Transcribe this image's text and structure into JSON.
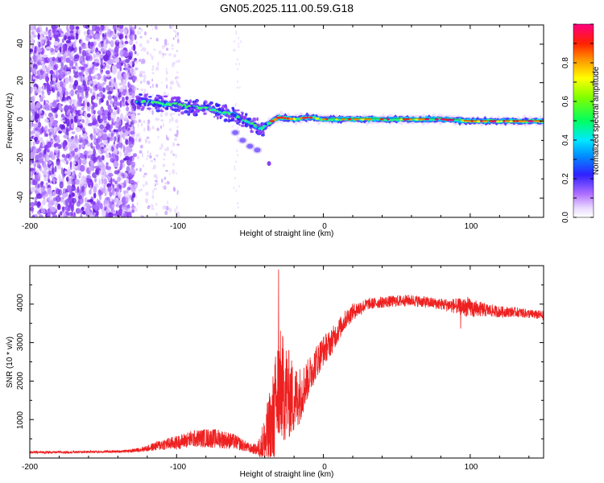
{
  "title": "GN05.2025.111.00.59.G18",
  "chart_data": [
    {
      "type": "heatmap",
      "name": "spectrogram",
      "xlabel": "Height of straight line (km)",
      "ylabel": "Frequency (Hz)",
      "xlim": [
        -200,
        150
      ],
      "ylim": [
        -50,
        50
      ],
      "xticks": [
        "-200",
        "-100",
        "0",
        "100"
      ],
      "yticks": [
        "-40",
        "-20",
        "0",
        "20",
        "40"
      ],
      "colorbar": {
        "label": "Normalized spectral amplitude",
        "range": [
          0,
          1
        ],
        "ticks": [
          "0.0",
          "0.2",
          "0.4",
          "0.6",
          "0.8"
        ],
        "colors": [
          "#ffffff",
          "#d8b8ff",
          "#9a40ff",
          "#2020ff",
          "#00d8ff",
          "#00ff70",
          "#80ff00",
          "#ffff00",
          "#ff8000",
          "#ff0000",
          "#ff0080"
        ]
      },
      "signal_track": [
        {
          "x": -127,
          "f": 10
        },
        {
          "x": -120,
          "f": 10
        },
        {
          "x": -110,
          "f": 9
        },
        {
          "x": -100,
          "f": 9
        },
        {
          "x": -90,
          "f": 7
        },
        {
          "x": -80,
          "f": 7
        },
        {
          "x": -70,
          "f": 5
        },
        {
          "x": -60,
          "f": 3
        },
        {
          "x": -50,
          "f": -1
        },
        {
          "x": -42,
          "f": -4
        },
        {
          "x": -35,
          "f": 0
        },
        {
          "x": -30,
          "f": 2
        },
        {
          "x": -20,
          "f": 1
        },
        {
          "x": -10,
          "f": 2
        },
        {
          "x": 0,
          "f": 1
        },
        {
          "x": 20,
          "f": 1
        },
        {
          "x": 50,
          "f": 1
        },
        {
          "x": 80,
          "f": 1
        },
        {
          "x": 100,
          "f": 0
        },
        {
          "x": 150,
          "f": 0
        }
      ],
      "branch_track": [
        {
          "x": -60,
          "f": -6
        },
        {
          "x": -55,
          "f": -10
        },
        {
          "x": -50,
          "f": -13
        },
        {
          "x": -45,
          "f": -15
        }
      ]
    },
    {
      "type": "line",
      "name": "snr",
      "xlabel": "Height of straight line (km)",
      "ylabel": "SNR (10 * v/v)",
      "xlim": [
        -200,
        150
      ],
      "ylim": [
        0,
        5000
      ],
      "xticks": [
        "-200",
        "-100",
        "0",
        "100"
      ],
      "yticks": [
        "1000",
        "2000",
        "3000",
        "4000"
      ],
      "color": "#ee2020",
      "series": [
        {
          "name": "SNR",
          "x": [
            -200,
            -180,
            -160,
            -140,
            -130,
            -120,
            -110,
            -100,
            -90,
            -80,
            -70,
            -60,
            -50,
            -45,
            -40,
            -35,
            -30,
            -25,
            -20,
            -15,
            -10,
            -5,
            0,
            5,
            10,
            15,
            20,
            25,
            30,
            40,
            50,
            60,
            70,
            80,
            90,
            100,
            110,
            120,
            130,
            140,
            150
          ],
          "values": [
            150,
            150,
            160,
            170,
            190,
            250,
            350,
            400,
            500,
            520,
            500,
            420,
            250,
            220,
            400,
            700,
            1900,
            1700,
            1500,
            1700,
            2100,
            2500,
            2800,
            3000,
            3300,
            3600,
            3800,
            3900,
            4000,
            4050,
            4080,
            4100,
            4050,
            4000,
            3950,
            3900,
            3850,
            3800,
            3800,
            3750,
            3700
          ],
          "noise": [
            30,
            30,
            30,
            30,
            40,
            80,
            150,
            180,
            220,
            250,
            250,
            200,
            120,
            150,
            700,
            1400,
            1500,
            1300,
            900,
            700,
            500,
            450,
            400,
            350,
            300,
            250,
            220,
            200,
            150,
            150,
            150,
            150,
            150,
            150,
            200,
            250,
            180,
            150,
            130,
            120,
            120
          ]
        }
      ]
    }
  ]
}
